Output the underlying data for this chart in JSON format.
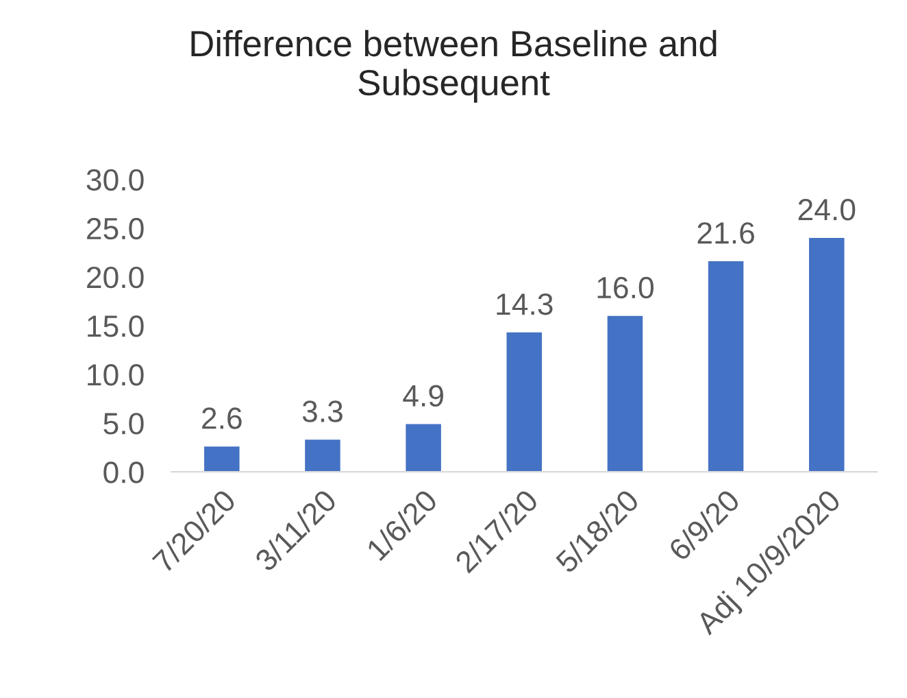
{
  "chart_data": {
    "type": "bar",
    "title": "Difference between Baseline and\nSubsequent",
    "categories": [
      "7/20/20",
      "3/11/20",
      "1/6/20",
      "2/17/20",
      "5/18/20",
      "6/9/20",
      "Adj 10/9/2020"
    ],
    "values": [
      2.6,
      3.3,
      4.9,
      14.3,
      16.0,
      21.6,
      24.0
    ],
    "color": "#4472c4",
    "value_labels": [
      "2.6",
      "3.3",
      "4.9",
      "14.3",
      "16.0",
      "21.6",
      "24.0"
    ],
    "ylim": [
      0,
      30
    ],
    "yticks": [
      {
        "value": 0,
        "label": "0.0"
      },
      {
        "value": 5,
        "label": "5.0"
      },
      {
        "value": 10,
        "label": "10.0"
      },
      {
        "value": 15,
        "label": "15.0"
      },
      {
        "value": 20,
        "label": "20.0"
      },
      {
        "value": 25,
        "label": "25.0"
      },
      {
        "value": 30,
        "label": "30.0"
      }
    ],
    "grid": false,
    "legend": false
  }
}
